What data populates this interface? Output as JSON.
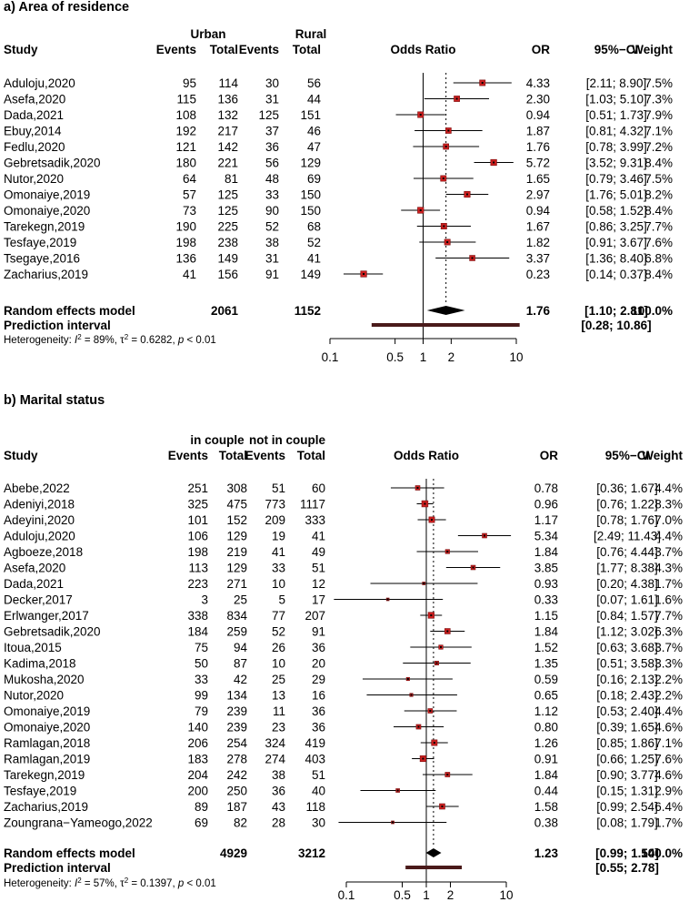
{
  "chart_data": [
    {
      "type": "forest",
      "title": "a)  Area of residence",
      "group1_label": "Urban",
      "group2_label": "Rural",
      "headers": {
        "study": "Study",
        "events": "Events",
        "total": "Total",
        "plot": "Odds Ratio",
        "or": "OR",
        "ci": "95%−CI",
        "weight": "Weight"
      },
      "axis": {
        "ticks": [
          0.1,
          0.5,
          1,
          2,
          10
        ],
        "tick_labels": [
          "0.1",
          "0.5",
          "1",
          "2",
          "10"
        ],
        "range": [
          0.1,
          10
        ]
      },
      "studies": [
        {
          "study": "Aduloju,2020",
          "e1": "95",
          "t1": "114",
          "e2": "30",
          "t2": "56",
          "or": 4.33,
          "lo": 2.11,
          "hi": 8.9,
          "or_text": "4.33",
          "ci_text": "[2.11;  8.90]",
          "w": 7.5,
          "weight": "7.5%"
        },
        {
          "study": "Asefa,2020",
          "e1": "115",
          "t1": "136",
          "e2": "31",
          "t2": "44",
          "or": 2.3,
          "lo": 1.03,
          "hi": 5.1,
          "or_text": "2.30",
          "ci_text": "[1.03;  5.10]",
          "w": 7.3,
          "weight": "7.3%"
        },
        {
          "study": "Dada,2021",
          "e1": "108",
          "t1": "132",
          "e2": "125",
          "t2": "151",
          "or": 0.94,
          "lo": 0.51,
          "hi": 1.73,
          "or_text": "0.94",
          "ci_text": "[0.51;  1.73]",
          "w": 7.9,
          "weight": "7.9%"
        },
        {
          "study": "Ebuy,2014",
          "e1": "192",
          "t1": "217",
          "e2": "37",
          "t2": "46",
          "or": 1.87,
          "lo": 0.81,
          "hi": 4.32,
          "or_text": "1.87",
          "ci_text": "[0.81;  4.32]",
          "w": 7.1,
          "weight": "7.1%"
        },
        {
          "study": "Fedlu,2020",
          "e1": "121",
          "t1": "142",
          "e2": "36",
          "t2": "47",
          "or": 1.76,
          "lo": 0.78,
          "hi": 3.99,
          "or_text": "1.76",
          "ci_text": "[0.78;  3.99]",
          "w": 7.2,
          "weight": "7.2%"
        },
        {
          "study": "Gebretsadik,2020",
          "e1": "180",
          "t1": "221",
          "e2": "56",
          "t2": "129",
          "or": 5.72,
          "lo": 3.52,
          "hi": 9.31,
          "or_text": "5.72",
          "ci_text": "[3.52;  9.31]",
          "w": 8.4,
          "weight": "8.4%"
        },
        {
          "study": "Nutor,2020",
          "e1": "64",
          "t1": "81",
          "e2": "48",
          "t2": "69",
          "or": 1.65,
          "lo": 0.79,
          "hi": 3.46,
          "or_text": "1.65",
          "ci_text": "[0.79;  3.46]",
          "w": 7.5,
          "weight": "7.5%"
        },
        {
          "study": "Omonaiye,2019",
          "e1": "57",
          "t1": "125",
          "e2": "33",
          "t2": "150",
          "or": 2.97,
          "lo": 1.76,
          "hi": 5.01,
          "or_text": "2.97",
          "ci_text": "[1.76;  5.01]",
          "w": 8.2,
          "weight": "8.2%"
        },
        {
          "study": "Omonaiye,2020",
          "e1": "73",
          "t1": "125",
          "e2": "90",
          "t2": "150",
          "or": 0.94,
          "lo": 0.58,
          "hi": 1.52,
          "or_text": "0.94",
          "ci_text": "[0.58;  1.52]",
          "w": 8.4,
          "weight": "8.4%"
        },
        {
          "study": "Tarekegn,2019",
          "e1": "190",
          "t1": "225",
          "e2": "52",
          "t2": "68",
          "or": 1.67,
          "lo": 0.86,
          "hi": 3.25,
          "or_text": "1.67",
          "ci_text": "[0.86;  3.25]",
          "w": 7.7,
          "weight": "7.7%"
        },
        {
          "study": "Tesfaye,2019",
          "e1": "198",
          "t1": "238",
          "e2": "38",
          "t2": "52",
          "or": 1.82,
          "lo": 0.91,
          "hi": 3.67,
          "or_text": "1.82",
          "ci_text": "[0.91;  3.67]",
          "w": 7.6,
          "weight": "7.6%"
        },
        {
          "study": "Tsegaye,2016",
          "e1": "136",
          "t1": "149",
          "e2": "31",
          "t2": "41",
          "or": 3.37,
          "lo": 1.36,
          "hi": 8.4,
          "or_text": "3.37",
          "ci_text": "[1.36;  8.40]",
          "w": 6.8,
          "weight": "6.8%"
        },
        {
          "study": "Zacharius,2019",
          "e1": "41",
          "t1": "156",
          "e2": "91",
          "t2": "149",
          "or": 0.23,
          "lo": 0.14,
          "hi": 0.37,
          "or_text": "0.23",
          "ci_text": "[0.14;  0.37]",
          "w": 8.4,
          "weight": "8.4%"
        }
      ],
      "summary": {
        "label": "Random effects model",
        "t1": "2061",
        "t2": "1152",
        "or": 1.76,
        "lo": 1.1,
        "hi": 2.81,
        "or_text": "1.76",
        "ci_text": "[1.10;  2.81]",
        "weight": "100.0%"
      },
      "prediction": {
        "label": "Prediction interval",
        "lo": 0.28,
        "hi": 10.86,
        "ci_text": "[0.28; 10.86]"
      },
      "heterogeneity": {
        "prefix": "Heterogeneity: ",
        "i2_sym": "I",
        "i2_exp": "2",
        "i2_val": " = 89%, ",
        "tau_sym": "τ",
        "tau_exp": "2",
        "tau_val": " = 0.6282, ",
        "p_sym": "p",
        "p_val": " < 0.01"
      }
    },
    {
      "type": "forest",
      "title": "b)  Marital status",
      "group1_label": "in couple",
      "group2_label": "not in couple",
      "headers": {
        "study": "Study",
        "events": "Events",
        "total": "Total",
        "plot": "Odds Ratio",
        "or": "OR",
        "ci": "95%−CI",
        "weight": "Weight"
      },
      "axis": {
        "ticks": [
          0.1,
          0.5,
          1,
          2,
          10
        ],
        "tick_labels": [
          "0.1",
          "0.5",
          "1",
          "2",
          "10"
        ],
        "range": [
          0.1,
          10
        ]
      },
      "studies": [
        {
          "study": "Abebe,2022",
          "e1": "251",
          "t1": "308",
          "e2": "51",
          "t2": "60",
          "or": 0.78,
          "lo": 0.36,
          "hi": 1.67,
          "or_text": "0.78",
          "ci_text": "[0.36;  1.67]",
          "w": 4.4,
          "weight": "4.4%"
        },
        {
          "study": "Adeniyi,2018",
          "e1": "325",
          "t1": "475",
          "e2": "773",
          "t2": "1117",
          "or": 0.96,
          "lo": 0.76,
          "hi": 1.22,
          "or_text": "0.96",
          "ci_text": "[0.76;  1.22]",
          "w": 8.3,
          "weight": "8.3%"
        },
        {
          "study": "Adeyini,2020",
          "e1": "101",
          "t1": "152",
          "e2": "209",
          "t2": "333",
          "or": 1.17,
          "lo": 0.78,
          "hi": 1.76,
          "or_text": "1.17",
          "ci_text": "[0.78;  1.76]",
          "w": 7.0,
          "weight": "7.0%"
        },
        {
          "study": "Aduloju,2020",
          "e1": "106",
          "t1": "129",
          "e2": "19",
          "t2": "41",
          "or": 5.34,
          "lo": 2.49,
          "hi": 11.43,
          "or_text": "5.34",
          "ci_text": "[2.49; 11.43]",
          "w": 4.4,
          "weight": "4.4%"
        },
        {
          "study": "Agboeze,2018",
          "e1": "198",
          "t1": "219",
          "e2": "41",
          "t2": "49",
          "or": 1.84,
          "lo": 0.76,
          "hi": 4.44,
          "or_text": "1.84",
          "ci_text": "[0.76;  4.44]",
          "w": 3.7,
          "weight": "3.7%"
        },
        {
          "study": "Asefa,2020",
          "e1": "113",
          "t1": "129",
          "e2": "33",
          "t2": "51",
          "or": 3.85,
          "lo": 1.77,
          "hi": 8.38,
          "or_text": "3.85",
          "ci_text": "[1.77;  8.38]",
          "w": 4.3,
          "weight": "4.3%"
        },
        {
          "study": "Dada,2021",
          "e1": "223",
          "t1": "271",
          "e2": "10",
          "t2": "12",
          "or": 0.93,
          "lo": 0.2,
          "hi": 4.38,
          "or_text": "0.93",
          "ci_text": "[0.20;  4.38]",
          "w": 1.7,
          "weight": "1.7%"
        },
        {
          "study": "Decker,2017",
          "e1": "3",
          "t1": "25",
          "e2": "5",
          "t2": "17",
          "or": 0.33,
          "lo": 0.07,
          "hi": 1.61,
          "or_text": "0.33",
          "ci_text": "[0.07;  1.61]",
          "w": 1.6,
          "weight": "1.6%"
        },
        {
          "study": "Erlwanger,2017",
          "e1": "338",
          "t1": "834",
          "e2": "77",
          "t2": "207",
          "or": 1.15,
          "lo": 0.84,
          "hi": 1.57,
          "or_text": "1.15",
          "ci_text": "[0.84;  1.57]",
          "w": 7.7,
          "weight": "7.7%"
        },
        {
          "study": "Gebretsadik,2020",
          "e1": "184",
          "t1": "259",
          "e2": "52",
          "t2": "91",
          "or": 1.84,
          "lo": 1.12,
          "hi": 3.02,
          "or_text": "1.84",
          "ci_text": "[1.12;  3.02]",
          "w": 6.3,
          "weight": "6.3%"
        },
        {
          "study": "Itoua,2015",
          "e1": "75",
          "t1": "94",
          "e2": "26",
          "t2": "36",
          "or": 1.52,
          "lo": 0.63,
          "hi": 3.68,
          "or_text": "1.52",
          "ci_text": "[0.63;  3.68]",
          "w": 3.7,
          "weight": "3.7%"
        },
        {
          "study": "Kadima,2018",
          "e1": "50",
          "t1": "87",
          "e2": "10",
          "t2": "20",
          "or": 1.35,
          "lo": 0.51,
          "hi": 3.58,
          "or_text": "1.35",
          "ci_text": "[0.51;  3.58]",
          "w": 3.3,
          "weight": "3.3%"
        },
        {
          "study": "Mukosha,2020",
          "e1": "33",
          "t1": "42",
          "e2": "25",
          "t2": "29",
          "or": 0.59,
          "lo": 0.16,
          "hi": 2.13,
          "or_text": "0.59",
          "ci_text": "[0.16;  2.13]",
          "w": 2.2,
          "weight": "2.2%"
        },
        {
          "study": "Nutor,2020",
          "e1": "99",
          "t1": "134",
          "e2": "13",
          "t2": "16",
          "or": 0.65,
          "lo": 0.18,
          "hi": 2.43,
          "or_text": "0.65",
          "ci_text": "[0.18;  2.43]",
          "w": 2.2,
          "weight": "2.2%"
        },
        {
          "study": "Omonaiye,2019",
          "e1": "79",
          "t1": "239",
          "e2": "11",
          "t2": "36",
          "or": 1.12,
          "lo": 0.53,
          "hi": 2.4,
          "or_text": "1.12",
          "ci_text": "[0.53;  2.40]",
          "w": 4.4,
          "weight": "4.4%"
        },
        {
          "study": "Omonaiye,2020",
          "e1": "140",
          "t1": "239",
          "e2": "23",
          "t2": "36",
          "or": 0.8,
          "lo": 0.39,
          "hi": 1.65,
          "or_text": "0.80",
          "ci_text": "[0.39;  1.65]",
          "w": 4.6,
          "weight": "4.6%"
        },
        {
          "study": "Ramlagan,2018",
          "e1": "206",
          "t1": "254",
          "e2": "324",
          "t2": "419",
          "or": 1.26,
          "lo": 0.85,
          "hi": 1.86,
          "or_text": "1.26",
          "ci_text": "[0.85;  1.86]",
          "w": 7.1,
          "weight": "7.1%"
        },
        {
          "study": "Ramlagan,2019",
          "e1": "183",
          "t1": "278",
          "e2": "274",
          "t2": "403",
          "or": 0.91,
          "lo": 0.66,
          "hi": 1.25,
          "or_text": "0.91",
          "ci_text": "[0.66;  1.25]",
          "w": 7.6,
          "weight": "7.6%"
        },
        {
          "study": "Tarekegn,2019",
          "e1": "204",
          "t1": "242",
          "e2": "38",
          "t2": "51",
          "or": 1.84,
          "lo": 0.9,
          "hi": 3.77,
          "or_text": "1.84",
          "ci_text": "[0.90;  3.77]",
          "w": 4.6,
          "weight": "4.6%"
        },
        {
          "study": "Tesfaye,2019",
          "e1": "200",
          "t1": "250",
          "e2": "36",
          "t2": "40",
          "or": 0.44,
          "lo": 0.15,
          "hi": 1.31,
          "or_text": "0.44",
          "ci_text": "[0.15;  1.31]",
          "w": 2.9,
          "weight": "2.9%"
        },
        {
          "study": "Zacharius,2019",
          "e1": "89",
          "t1": "187",
          "e2": "43",
          "t2": "118",
          "or": 1.58,
          "lo": 0.99,
          "hi": 2.54,
          "or_text": "1.58",
          "ci_text": "[0.99;  2.54]",
          "w": 6.4,
          "weight": "6.4%"
        },
        {
          "study": "Zoungrana−Yameogo,2022",
          "e1": "69",
          "t1": "82",
          "e2": "28",
          "t2": "30",
          "or": 0.38,
          "lo": 0.08,
          "hi": 1.79,
          "or_text": "0.38",
          "ci_text": "[0.08;  1.79]",
          "w": 1.7,
          "weight": "1.7%"
        }
      ],
      "summary": {
        "label": "Random effects model",
        "t1": "4929",
        "t2": "3212",
        "or": 1.23,
        "lo": 0.99,
        "hi": 1.54,
        "or_text": "1.23",
        "ci_text": "[0.99;  1.54]",
        "weight": "100.0%"
      },
      "prediction": {
        "label": "Prediction interval",
        "lo": 0.55,
        "hi": 2.78,
        "ci_text": "[0.55;  2.78]"
      },
      "heterogeneity": {
        "prefix": "Heterogeneity: ",
        "i2_sym": "I",
        "i2_exp": "2",
        "i2_val": " = 57%, ",
        "tau_sym": "τ",
        "tau_exp": "2",
        "tau_val": " = 0.1397, ",
        "p_sym": "p",
        "p_val": " < 0.01"
      }
    }
  ],
  "colors": {
    "box": "#cc1f1f",
    "box_border": "#7a1010",
    "diamond": "#000000",
    "prediction": "#4a1a1a",
    "text": "#000000"
  }
}
